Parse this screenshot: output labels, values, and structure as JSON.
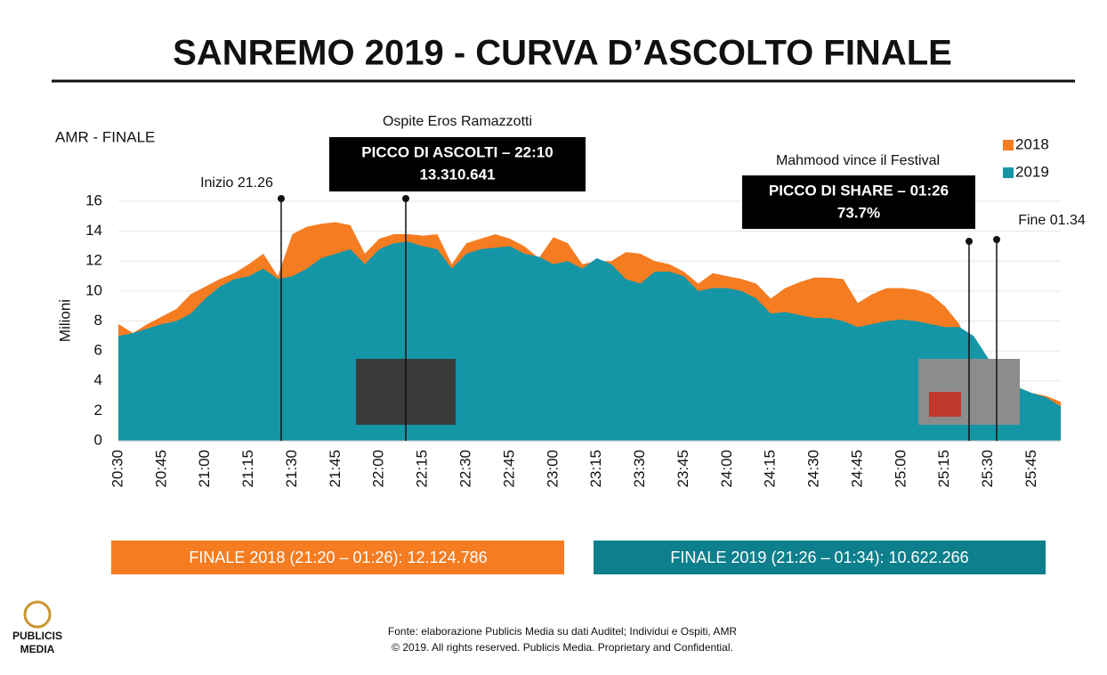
{
  "chart_data": {
    "type": "area",
    "title": "SANREMO 2019 - CURVA D’ASCOLTO FINALE",
    "subtitle": "AMR - FINALE",
    "y_label": "Milioni",
    "categories": [
      "20:30",
      null,
      null,
      "20:45",
      null,
      null,
      "21:00",
      null,
      null,
      "21:15",
      null,
      null,
      "21:30",
      null,
      null,
      "21:45",
      null,
      null,
      "22:00",
      null,
      null,
      "22:15",
      null,
      null,
      "22:30",
      null,
      null,
      "22:45",
      null,
      null,
      "23:00",
      null,
      null,
      "23:15",
      null,
      null,
      "23:30",
      null,
      null,
      "23:45",
      null,
      null,
      "24:00",
      null,
      null,
      "24:15",
      null,
      null,
      "24:30",
      null,
      null,
      "24:45",
      null,
      null,
      "25:00",
      null,
      null,
      "25:15",
      null,
      null,
      "25:30",
      null,
      null,
      "25:45",
      null,
      null
    ],
    "series": [
      {
        "name": "2018",
        "color": "#f57c20",
        "values": [
          7.8,
          7.2,
          7.8,
          8.3,
          8.8,
          9.8,
          10.3,
          10.8,
          11.2,
          11.8,
          12.5,
          11.0,
          13.8,
          14.3,
          14.5,
          14.6,
          14.4,
          12.5,
          13.5,
          13.8,
          13.8,
          13.7,
          13.8,
          11.8,
          13.2,
          13.5,
          13.8,
          13.5,
          13.0,
          12.2,
          13.6,
          13.2,
          11.8,
          12.0,
          12.0,
          12.6,
          12.5,
          12.0,
          11.8,
          11.3,
          10.5,
          11.2,
          11.0,
          10.8,
          10.5,
          9.5,
          10.2,
          10.6,
          10.9,
          10.9,
          10.8,
          9.2,
          9.8,
          10.2,
          10.2,
          10.1,
          9.8,
          9.0,
          7.8,
          5.5,
          4.5,
          3.8,
          3.4,
          3.2,
          3.0,
          2.6
        ]
      },
      {
        "name": "2019",
        "color": "#1596a6",
        "values": [
          7.0,
          7.2,
          7.5,
          7.8,
          8.0,
          8.5,
          9.5,
          10.3,
          10.8,
          11.0,
          11.5,
          10.8,
          11.0,
          11.5,
          12.2,
          12.5,
          12.8,
          11.8,
          12.8,
          13.2,
          13.3,
          13.0,
          12.8,
          11.5,
          12.5,
          12.8,
          12.9,
          13.0,
          12.5,
          12.3,
          11.8,
          12.0,
          11.5,
          12.2,
          11.8,
          10.8,
          10.5,
          11.3,
          11.3,
          11.0,
          10.0,
          10.2,
          10.2,
          10.0,
          9.5,
          8.5,
          8.6,
          8.4,
          8.2,
          8.2,
          8.0,
          7.6,
          7.8,
          8.0,
          8.1,
          8.0,
          7.8,
          7.6,
          7.6,
          7.0,
          5.5,
          4.5,
          3.6,
          3.2,
          2.9,
          2.3
        ]
      }
    ],
    "ylim": [
      0,
      16
    ],
    "yticks": [
      0,
      2,
      4,
      6,
      8,
      10,
      12,
      14,
      16
    ],
    "grid": true,
    "legend": "top-right",
    "annotations": {
      "start": "Inizio 21.26",
      "guest": "Ospite Eros Ramazzotti",
      "peak_audience": "PICCO DI ASCOLTI – 22:10",
      "peak_audience_value": "13.310.641",
      "winner": "Mahmood vince il Festival",
      "peak_share": "PICCO DI SHARE – 01:26",
      "peak_share_value": "73.7%",
      "end": "Fine 01.34"
    },
    "summary": [
      "FINALE 2018 (21:20 – 01:26): 12.124.786",
      "FINALE 2019 (21:26 – 01:34): 10.622.266"
    ],
    "source": [
      "Fonte: elaborazione Publicis Media su dati Auditel; Individui e Ospiti, AMR",
      "© 2019. All rights reserved. Publicis Media. Proprietary and Confidential."
    ],
    "logo": [
      "PUBLICIS",
      "MEDIA"
    ]
  }
}
